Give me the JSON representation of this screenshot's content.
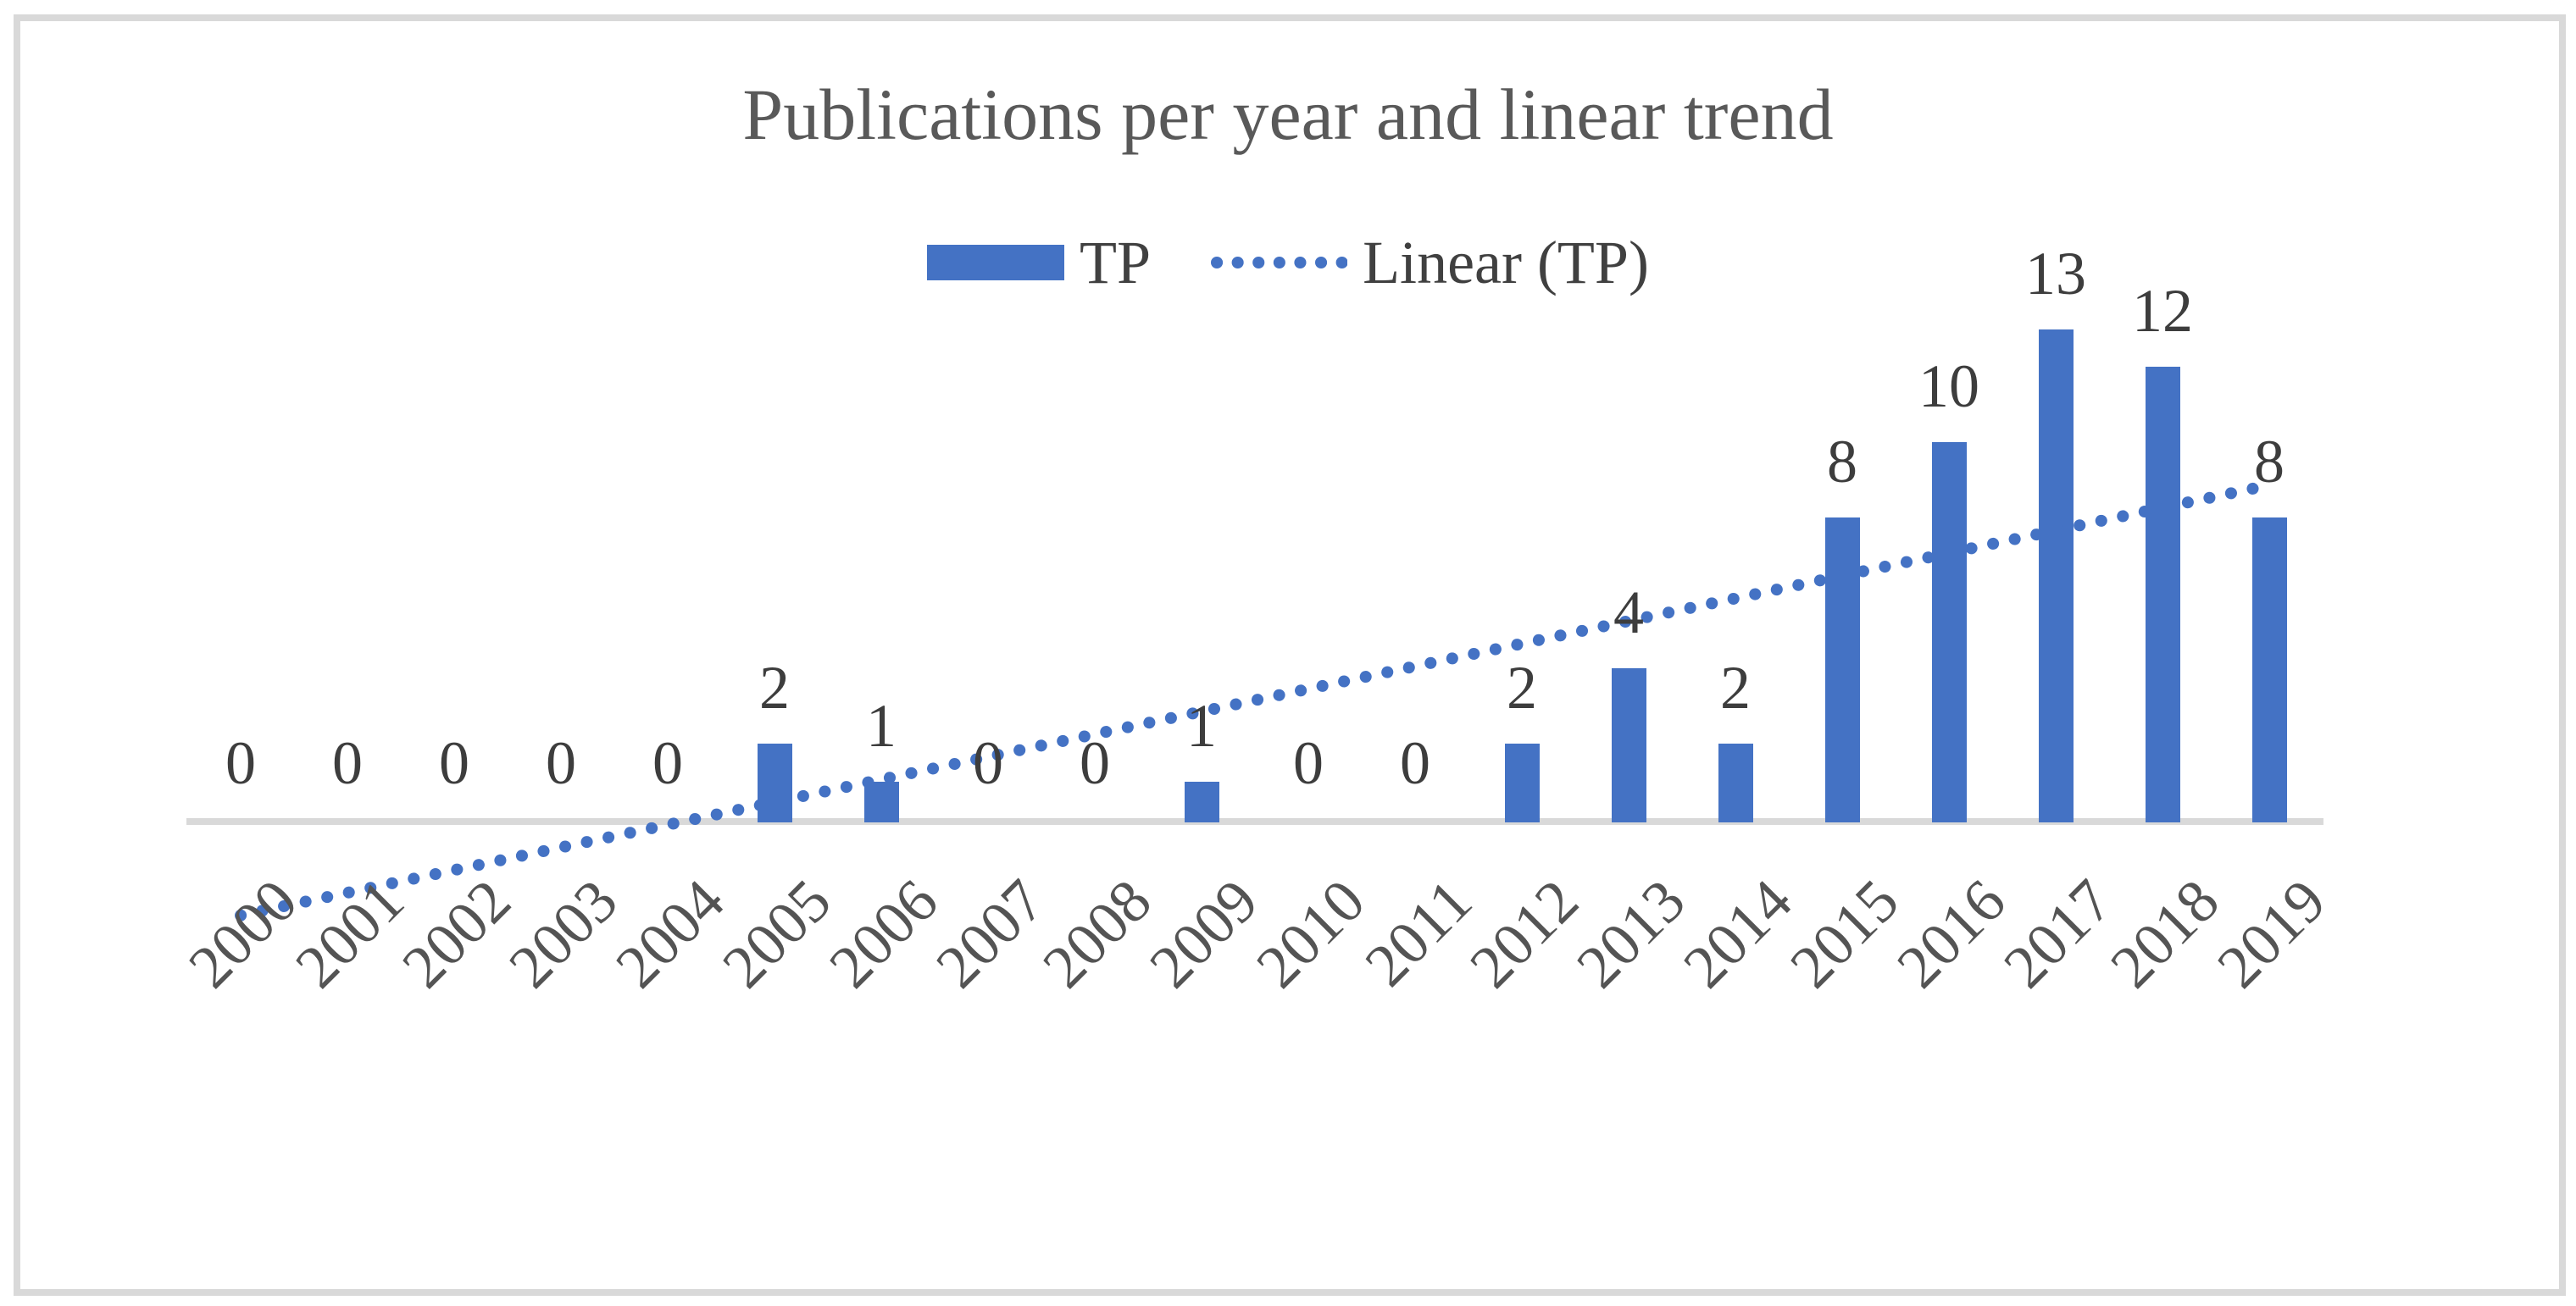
{
  "chart_data": {
    "type": "bar",
    "title": "Publications per year and linear trend",
    "categories": [
      "2000",
      "2001",
      "2002",
      "2003",
      "2004",
      "2005",
      "2006",
      "2007",
      "2008",
      "2009",
      "2010",
      "2011",
      "2012",
      "2013",
      "2014",
      "2015",
      "2016",
      "2017",
      "2018",
      "2019"
    ],
    "series": [
      {
        "name": "TP",
        "type": "bar",
        "values": [
          0,
          0,
          0,
          0,
          0,
          2,
          1,
          0,
          0,
          1,
          0,
          0,
          2,
          4,
          2,
          8,
          10,
          13,
          12,
          8
        ]
      },
      {
        "name": "Linear (TP)",
        "type": "linear-trendline",
        "style": "dotted",
        "slope_per_year": 0.6008,
        "intercept_at_2000": -2.5571
      }
    ],
    "data_labels": [
      0,
      0,
      0,
      0,
      0,
      2,
      1,
      0,
      0,
      1,
      0,
      0,
      2,
      4,
      2,
      8,
      10,
      13,
      12,
      8
    ],
    "xlabel": "",
    "ylabel": "",
    "y_axis_visible": false,
    "gridlines": false,
    "x_tick_rotation_deg": -45,
    "legend_position": "top-center"
  },
  "colors": {
    "series_blue": "#4472C4",
    "axis_line": "#D9D9D9",
    "frame_border": "#D9D9D9",
    "title_text": "#595959",
    "data_label_text": "#3D3D3D",
    "x_tick_text": "#545454",
    "legend_text": "#404040",
    "background": "#ffffff"
  }
}
